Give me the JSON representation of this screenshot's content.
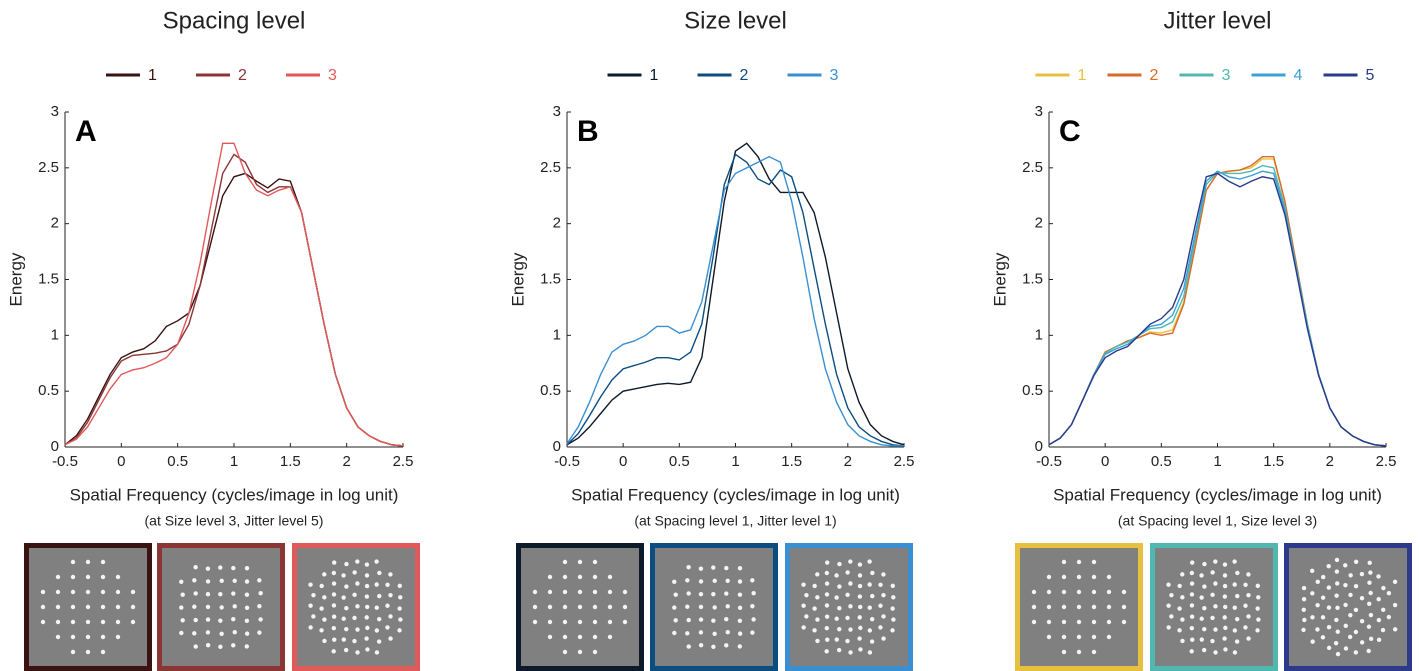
{
  "chart_data": [
    {
      "type": "line",
      "title": "Spacing level",
      "panel_label": "A",
      "xlabel": "Spatial Frequency (cycles/image in log unit)",
      "note": "(at Size level 3, Jitter level 5)",
      "ylabel": "Energy",
      "xlim": [
        -0.5,
        2.5
      ],
      "ylim": [
        0,
        3
      ],
      "xticks": [
        -0.5,
        0,
        0.5,
        1,
        1.5,
        2,
        2.5
      ],
      "yticks": [
        0,
        0.5,
        1,
        1.5,
        2,
        2.5,
        3
      ],
      "x": [
        -0.5,
        -0.4,
        -0.3,
        -0.2,
        -0.1,
        0,
        0.1,
        0.2,
        0.3,
        0.4,
        0.5,
        0.6,
        0.7,
        0.8,
        0.9,
        1.0,
        1.1,
        1.2,
        1.3,
        1.4,
        1.5,
        1.6,
        1.7,
        1.8,
        1.9,
        2.0,
        2.1,
        2.2,
        2.3,
        2.4,
        2.5
      ],
      "series": [
        {
          "name": "1",
          "color": "#3a1212",
          "values": [
            0.02,
            0.1,
            0.25,
            0.45,
            0.65,
            0.8,
            0.85,
            0.88,
            0.95,
            1.08,
            1.13,
            1.2,
            1.45,
            1.85,
            2.25,
            2.42,
            2.45,
            2.38,
            2.32,
            2.4,
            2.38,
            2.1,
            1.6,
            1.1,
            0.65,
            0.35,
            0.18,
            0.1,
            0.05,
            0.02,
            0.01
          ]
        },
        {
          "name": "2",
          "color": "#8b3535",
          "values": [
            0.02,
            0.08,
            0.22,
            0.42,
            0.62,
            0.77,
            0.82,
            0.83,
            0.84,
            0.86,
            0.92,
            1.1,
            1.45,
            1.95,
            2.45,
            2.62,
            2.55,
            2.35,
            2.28,
            2.33,
            2.33,
            2.1,
            1.6,
            1.1,
            0.65,
            0.35,
            0.18,
            0.1,
            0.05,
            0.02,
            0.01
          ]
        },
        {
          "name": "3",
          "color": "#e05a5a",
          "values": [
            0.02,
            0.07,
            0.18,
            0.35,
            0.52,
            0.65,
            0.69,
            0.71,
            0.75,
            0.8,
            0.92,
            1.2,
            1.65,
            2.2,
            2.72,
            2.72,
            2.45,
            2.3,
            2.25,
            2.3,
            2.33,
            2.1,
            1.6,
            1.1,
            0.65,
            0.35,
            0.18,
            0.1,
            0.05,
            0.02,
            0.01
          ]
        }
      ]
    },
    {
      "type": "line",
      "title": "Size level",
      "panel_label": "B",
      "xlabel": "Spatial Frequency (cycles/image in log unit)",
      "note": "(at Spacing level 1, Jitter level 1)",
      "ylabel": "Energy",
      "xlim": [
        -0.5,
        2.5
      ],
      "ylim": [
        0,
        3
      ],
      "xticks": [
        -0.5,
        0,
        0.5,
        1,
        1.5,
        2,
        2.5
      ],
      "yticks": [
        0,
        0.5,
        1,
        1.5,
        2,
        2.5,
        3
      ],
      "x": [
        -0.5,
        -0.4,
        -0.3,
        -0.2,
        -0.1,
        0,
        0.1,
        0.2,
        0.3,
        0.4,
        0.5,
        0.6,
        0.7,
        0.8,
        0.9,
        1.0,
        1.1,
        1.2,
        1.3,
        1.4,
        1.5,
        1.6,
        1.7,
        1.8,
        1.9,
        2.0,
        2.1,
        2.2,
        2.3,
        2.4,
        2.5
      ],
      "series": [
        {
          "name": "1",
          "color": "#0d1a2a",
          "values": [
            0.02,
            0.08,
            0.18,
            0.3,
            0.42,
            0.5,
            0.52,
            0.54,
            0.56,
            0.57,
            0.56,
            0.58,
            0.8,
            1.5,
            2.2,
            2.65,
            2.72,
            2.6,
            2.4,
            2.28,
            2.28,
            2.28,
            2.1,
            1.7,
            1.2,
            0.7,
            0.4,
            0.2,
            0.1,
            0.05,
            0.02
          ]
        },
        {
          "name": "2",
          "color": "#0b4d80",
          "values": [
            0.02,
            0.12,
            0.28,
            0.45,
            0.6,
            0.7,
            0.73,
            0.76,
            0.8,
            0.8,
            0.78,
            0.85,
            1.1,
            1.7,
            2.35,
            2.62,
            2.55,
            2.4,
            2.35,
            2.48,
            2.42,
            2.1,
            1.6,
            1.1,
            0.65,
            0.35,
            0.18,
            0.1,
            0.05,
            0.02,
            0.01
          ]
        },
        {
          "name": "3",
          "color": "#3a8fd0",
          "values": [
            0.03,
            0.18,
            0.4,
            0.65,
            0.85,
            0.92,
            0.95,
            1.0,
            1.08,
            1.08,
            1.02,
            1.05,
            1.3,
            1.8,
            2.3,
            2.45,
            2.5,
            2.55,
            2.6,
            2.55,
            2.2,
            1.7,
            1.15,
            0.7,
            0.4,
            0.2,
            0.1,
            0.05,
            0.02,
            0.01,
            0.01
          ]
        }
      ]
    },
    {
      "type": "line",
      "title": "Jitter level",
      "panel_label": "C",
      "xlabel": "Spatial Frequency (cycles/image in log unit)",
      "note": "(at Spacing level 1, Size level 3)",
      "ylabel": "Energy",
      "xlim": [
        -0.5,
        2.5
      ],
      "ylim": [
        0,
        3
      ],
      "xticks": [
        -0.5,
        0,
        0.5,
        1,
        1.5,
        2,
        2.5
      ],
      "yticks": [
        0,
        0.5,
        1,
        1.5,
        2,
        2.5,
        3
      ],
      "x": [
        -0.5,
        -0.4,
        -0.3,
        -0.2,
        -0.1,
        0,
        0.1,
        0.2,
        0.3,
        0.4,
        0.5,
        0.6,
        0.7,
        0.8,
        0.9,
        1.0,
        1.1,
        1.2,
        1.3,
        1.4,
        1.5,
        1.6,
        1.7,
        1.8,
        1.9,
        2.0,
        2.1,
        2.2,
        2.3,
        2.4,
        2.5
      ],
      "series": [
        {
          "name": "1",
          "color": "#e8c040",
          "values": [
            0.02,
            0.08,
            0.2,
            0.42,
            0.65,
            0.85,
            0.9,
            0.95,
            0.98,
            1.03,
            1.02,
            1.05,
            1.3,
            1.8,
            2.3,
            2.45,
            2.47,
            2.48,
            2.5,
            2.58,
            2.58,
            2.2,
            1.65,
            1.1,
            0.65,
            0.35,
            0.18,
            0.1,
            0.05,
            0.02,
            0.01
          ]
        },
        {
          "name": "2",
          "color": "#d86a2a",
          "values": [
            0.02,
            0.08,
            0.2,
            0.42,
            0.65,
            0.85,
            0.9,
            0.95,
            0.98,
            1.02,
            1.0,
            1.02,
            1.28,
            1.78,
            2.3,
            2.45,
            2.47,
            2.48,
            2.52,
            2.6,
            2.6,
            2.2,
            1.65,
            1.1,
            0.65,
            0.35,
            0.18,
            0.1,
            0.05,
            0.02,
            0.01
          ]
        },
        {
          "name": "3",
          "color": "#50b8b0",
          "values": [
            0.02,
            0.08,
            0.2,
            0.42,
            0.65,
            0.84,
            0.9,
            0.94,
            1.0,
            1.06,
            1.07,
            1.12,
            1.35,
            1.85,
            2.35,
            2.46,
            2.45,
            2.45,
            2.47,
            2.52,
            2.5,
            2.15,
            1.62,
            1.1,
            0.65,
            0.35,
            0.18,
            0.1,
            0.05,
            0.02,
            0.01
          ]
        },
        {
          "name": "4",
          "color": "#3aa0d8",
          "values": [
            0.02,
            0.08,
            0.2,
            0.42,
            0.65,
            0.83,
            0.88,
            0.92,
            1.0,
            1.08,
            1.1,
            1.18,
            1.42,
            1.9,
            2.38,
            2.47,
            2.42,
            2.4,
            2.43,
            2.47,
            2.45,
            2.12,
            1.6,
            1.08,
            0.65,
            0.35,
            0.18,
            0.1,
            0.05,
            0.02,
            0.01
          ]
        },
        {
          "name": "5",
          "color": "#2b3a8a",
          "values": [
            0.02,
            0.08,
            0.2,
            0.42,
            0.64,
            0.8,
            0.86,
            0.9,
            1.0,
            1.1,
            1.15,
            1.25,
            1.5,
            1.98,
            2.42,
            2.45,
            2.38,
            2.33,
            2.38,
            2.42,
            2.4,
            2.08,
            1.58,
            1.06,
            0.64,
            0.35,
            0.18,
            0.1,
            0.05,
            0.02,
            0.01
          ]
        }
      ]
    }
  ]
}
